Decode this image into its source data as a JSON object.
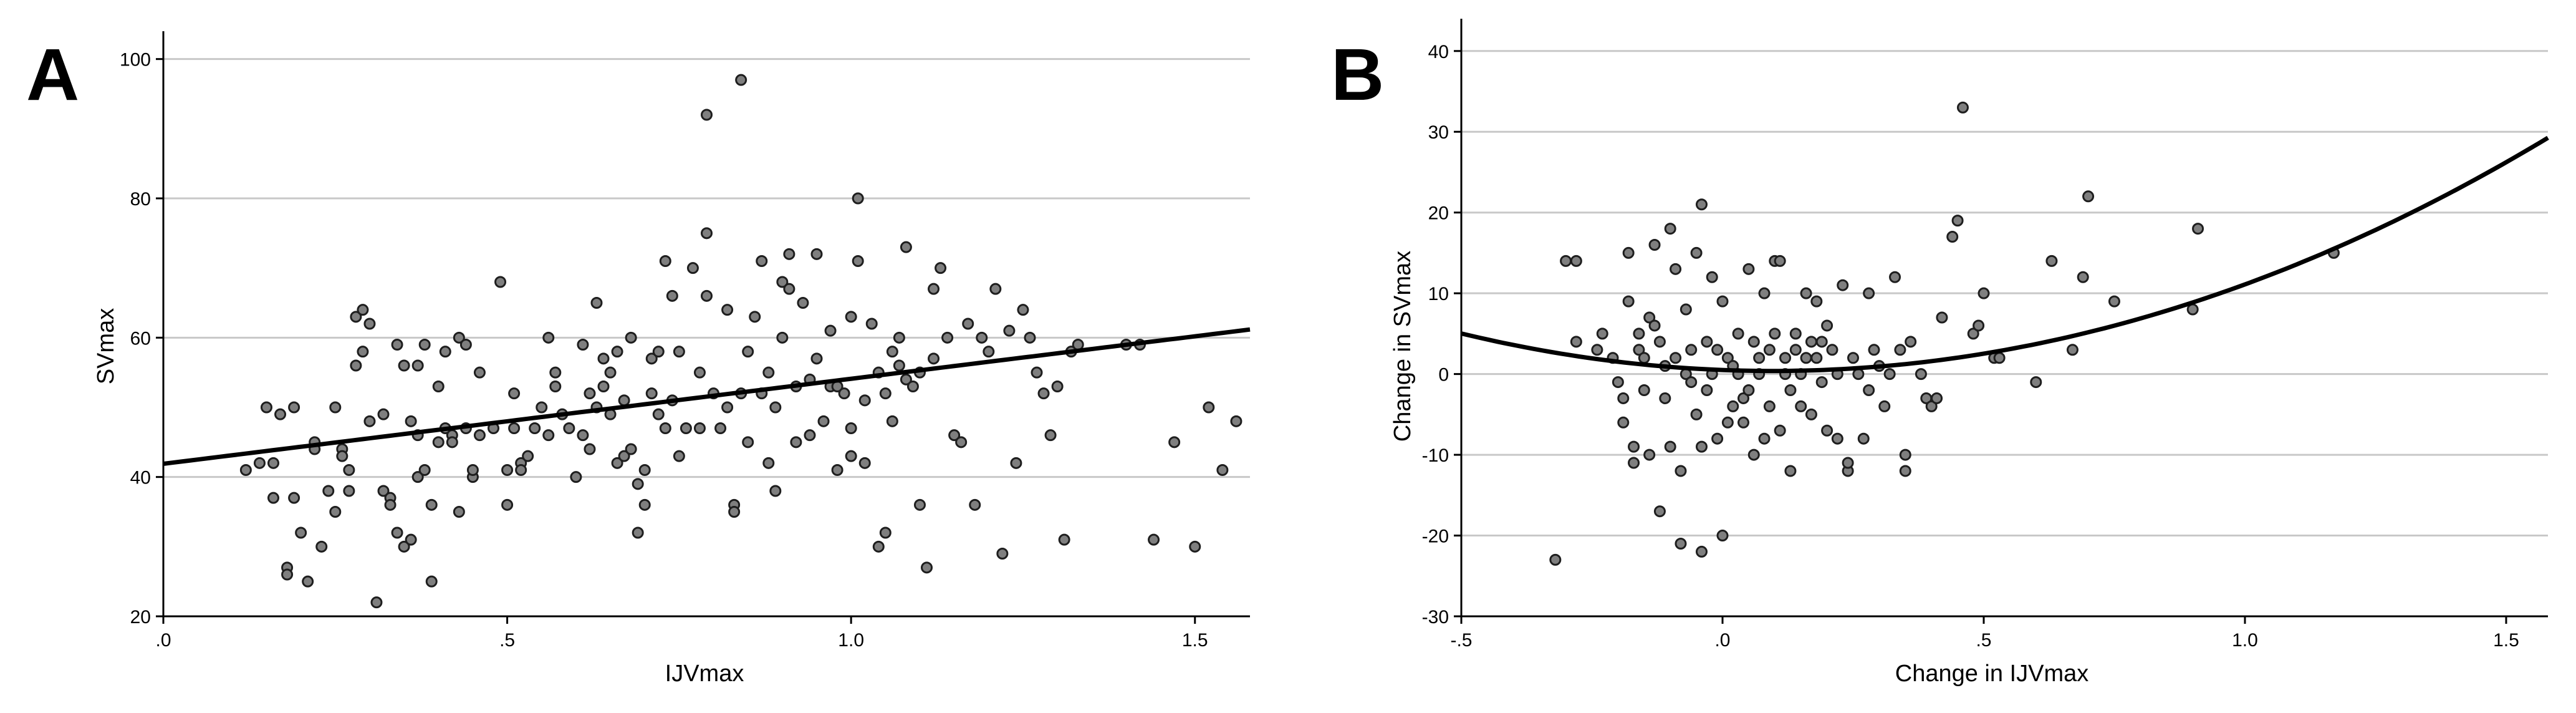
{
  "chart_data": [
    {
      "panel_label": "A",
      "type": "scatter",
      "xlabel": "IJVmax",
      "ylabel": "SVmax",
      "xlim": [
        0.0,
        1.58
      ],
      "ylim": [
        20,
        104
      ],
      "xticks": [
        0.0,
        0.5,
        1.0,
        1.5
      ],
      "xtick_labels": [
        ".0",
        ".5",
        "1.0",
        "1.5"
      ],
      "yticks": [
        20,
        40,
        60,
        80,
        100
      ],
      "ytick_labels": [
        "20",
        "40",
        "60",
        "80",
        "100"
      ],
      "grid": "horizontal",
      "colors": {
        "point_fill": "#7f7f7f",
        "point_edge": "#1e1e1e",
        "fit_line": "#000000"
      },
      "fit": {
        "type": "linear",
        "intercept": 41.9,
        "slope": 12.2
      },
      "points": [
        [
          0.12,
          41
        ],
        [
          0.14,
          42
        ],
        [
          0.15,
          50
        ],
        [
          0.16,
          37
        ],
        [
          0.16,
          42
        ],
        [
          0.17,
          49
        ],
        [
          0.18,
          27
        ],
        [
          0.18,
          26
        ],
        [
          0.19,
          37
        ],
        [
          0.19,
          50
        ],
        [
          0.2,
          32
        ],
        [
          0.21,
          25
        ],
        [
          0.22,
          45
        ],
        [
          0.22,
          44
        ],
        [
          0.23,
          30
        ],
        [
          0.24,
          38
        ],
        [
          0.25,
          50
        ],
        [
          0.25,
          35
        ],
        [
          0.26,
          44
        ],
        [
          0.26,
          43
        ],
        [
          0.27,
          38
        ],
        [
          0.27,
          41
        ],
        [
          0.28,
          56
        ],
        [
          0.28,
          63
        ],
        [
          0.29,
          58
        ],
        [
          0.29,
          64
        ],
        [
          0.3,
          48
        ],
        [
          0.3,
          62
        ],
        [
          0.31,
          22
        ],
        [
          0.32,
          49
        ],
        [
          0.32,
          38
        ],
        [
          0.33,
          37
        ],
        [
          0.33,
          36
        ],
        [
          0.34,
          59
        ],
        [
          0.34,
          32
        ],
        [
          0.35,
          30
        ],
        [
          0.35,
          56
        ],
        [
          0.36,
          31
        ],
        [
          0.36,
          48
        ],
        [
          0.37,
          56
        ],
        [
          0.37,
          46
        ],
        [
          0.37,
          40
        ],
        [
          0.38,
          41
        ],
        [
          0.38,
          59
        ],
        [
          0.39,
          36
        ],
        [
          0.39,
          25
        ],
        [
          0.4,
          53
        ],
        [
          0.4,
          45
        ],
        [
          0.41,
          47
        ],
        [
          0.41,
          58
        ],
        [
          0.42,
          46
        ],
        [
          0.42,
          45
        ],
        [
          0.43,
          35
        ],
        [
          0.43,
          60
        ],
        [
          0.44,
          59
        ],
        [
          0.44,
          47
        ],
        [
          0.45,
          40
        ],
        [
          0.45,
          41
        ],
        [
          0.46,
          55
        ],
        [
          0.46,
          46
        ],
        [
          0.48,
          47
        ],
        [
          0.49,
          68
        ],
        [
          0.5,
          41
        ],
        [
          0.5,
          36
        ],
        [
          0.51,
          47
        ],
        [
          0.51,
          52
        ],
        [
          0.52,
          42
        ],
        [
          0.52,
          41
        ],
        [
          0.53,
          43
        ],
        [
          0.54,
          47
        ],
        [
          0.55,
          50
        ],
        [
          0.56,
          60
        ],
        [
          0.56,
          46
        ],
        [
          0.57,
          55
        ],
        [
          0.57,
          53
        ],
        [
          0.58,
          49
        ],
        [
          0.59,
          47
        ],
        [
          0.6,
          40
        ],
        [
          0.61,
          59
        ],
        [
          0.61,
          46
        ],
        [
          0.62,
          44
        ],
        [
          0.62,
          52
        ],
        [
          0.63,
          65
        ],
        [
          0.63,
          50
        ],
        [
          0.64,
          53
        ],
        [
          0.64,
          57
        ],
        [
          0.65,
          49
        ],
        [
          0.65,
          55
        ],
        [
          0.66,
          58
        ],
        [
          0.66,
          42
        ],
        [
          0.67,
          43
        ],
        [
          0.67,
          51
        ],
        [
          0.68,
          60
        ],
        [
          0.68,
          44
        ],
        [
          0.69,
          32
        ],
        [
          0.69,
          39
        ],
        [
          0.7,
          41
        ],
        [
          0.7,
          36
        ],
        [
          0.71,
          57
        ],
        [
          0.71,
          52
        ],
        [
          0.72,
          49
        ],
        [
          0.72,
          58
        ],
        [
          0.73,
          47
        ],
        [
          0.73,
          71
        ],
        [
          0.74,
          51
        ],
        [
          0.74,
          66
        ],
        [
          0.75,
          58
        ],
        [
          0.75,
          43
        ],
        [
          0.76,
          47
        ],
        [
          0.77,
          70
        ],
        [
          0.78,
          55
        ],
        [
          0.78,
          47
        ],
        [
          0.79,
          66
        ],
        [
          0.79,
          75
        ],
        [
          0.79,
          92
        ],
        [
          0.8,
          52
        ],
        [
          0.81,
          47
        ],
        [
          0.82,
          64
        ],
        [
          0.82,
          50
        ],
        [
          0.83,
          36
        ],
        [
          0.83,
          35
        ],
        [
          0.84,
          97
        ],
        [
          0.84,
          52
        ],
        [
          0.85,
          58
        ],
        [
          0.85,
          45
        ],
        [
          0.86,
          63
        ],
        [
          0.87,
          71
        ],
        [
          0.87,
          52
        ],
        [
          0.88,
          42
        ],
        [
          0.88,
          55
        ],
        [
          0.89,
          50
        ],
        [
          0.89,
          38
        ],
        [
          0.9,
          68
        ],
        [
          0.9,
          60
        ],
        [
          0.91,
          67
        ],
        [
          0.91,
          72
        ],
        [
          0.92,
          53
        ],
        [
          0.92,
          45
        ],
        [
          0.93,
          65
        ],
        [
          0.94,
          54
        ],
        [
          0.94,
          46
        ],
        [
          0.95,
          72
        ],
        [
          0.95,
          57
        ],
        [
          0.96,
          48
        ],
        [
          0.97,
          53
        ],
        [
          0.97,
          61
        ],
        [
          0.98,
          53
        ],
        [
          0.98,
          41
        ],
        [
          0.99,
          52
        ],
        [
          1.0,
          47
        ],
        [
          1.0,
          43
        ],
        [
          1.0,
          63
        ],
        [
          1.01,
          71
        ],
        [
          1.01,
          80
        ],
        [
          1.02,
          51
        ],
        [
          1.02,
          42
        ],
        [
          1.03,
          62
        ],
        [
          1.04,
          55
        ],
        [
          1.04,
          30
        ],
        [
          1.05,
          32
        ],
        [
          1.05,
          52
        ],
        [
          1.06,
          58
        ],
        [
          1.06,
          48
        ],
        [
          1.07,
          56
        ],
        [
          1.07,
          60
        ],
        [
          1.08,
          73
        ],
        [
          1.08,
          54
        ],
        [
          1.09,
          53
        ],
        [
          1.1,
          55
        ],
        [
          1.1,
          36
        ],
        [
          1.11,
          27
        ],
        [
          1.12,
          57
        ],
        [
          1.12,
          67
        ],
        [
          1.13,
          70
        ],
        [
          1.14,
          60
        ],
        [
          1.15,
          46
        ],
        [
          1.16,
          45
        ],
        [
          1.17,
          62
        ],
        [
          1.18,
          36
        ],
        [
          1.19,
          60
        ],
        [
          1.2,
          58
        ],
        [
          1.21,
          67
        ],
        [
          1.22,
          29
        ],
        [
          1.23,
          61
        ],
        [
          1.24,
          42
        ],
        [
          1.25,
          64
        ],
        [
          1.26,
          60
        ],
        [
          1.27,
          55
        ],
        [
          1.28,
          52
        ],
        [
          1.29,
          46
        ],
        [
          1.3,
          53
        ],
        [
          1.31,
          31
        ],
        [
          1.32,
          58
        ],
        [
          1.33,
          59
        ],
        [
          1.4,
          59
        ],
        [
          1.44,
          31
        ],
        [
          1.47,
          45
        ],
        [
          1.5,
          30
        ],
        [
          1.52,
          50
        ],
        [
          1.54,
          41
        ],
        [
          1.56,
          48
        ],
        [
          1.42,
          59
        ]
      ]
    },
    {
      "panel_label": "B",
      "type": "scatter",
      "xlabel": "Change in IJVmax",
      "ylabel": "Change in SVmax",
      "xlim": [
        -0.5,
        1.58
      ],
      "ylim": [
        -30,
        44
      ],
      "xticks": [
        -0.5,
        0.0,
        0.5,
        1.0,
        1.5
      ],
      "xtick_labels": [
        "-.5",
        ".0",
        ".5",
        "1.0",
        "1.5"
      ],
      "yticks": [
        -30,
        -20,
        -10,
        0,
        10,
        20,
        30,
        40
      ],
      "ytick_labels": [
        "-30",
        "-20",
        "-10",
        "0",
        "10",
        "20",
        "30",
        "40"
      ],
      "grid": "horizontal",
      "colors": {
        "point_fill": "#7f7f7f",
        "point_edge": "#1e1e1e",
        "fit_line": "#000000"
      },
      "fit": {
        "type": "quadratic",
        "a": 13.1,
        "b": -2.5,
        "c": 0.5
      },
      "points": [
        [
          -0.32,
          -23
        ],
        [
          -0.3,
          14
        ],
        [
          -0.28,
          14
        ],
        [
          -0.28,
          4
        ],
        [
          -0.24,
          3
        ],
        [
          -0.23,
          5
        ],
        [
          -0.21,
          2
        ],
        [
          -0.2,
          -1
        ],
        [
          -0.19,
          -6
        ],
        [
          -0.19,
          -3
        ],
        [
          -0.18,
          15
        ],
        [
          -0.18,
          9
        ],
        [
          -0.17,
          -11
        ],
        [
          -0.17,
          -9
        ],
        [
          -0.16,
          5
        ],
        [
          -0.16,
          3
        ],
        [
          -0.15,
          -2
        ],
        [
          -0.15,
          2
        ],
        [
          -0.14,
          -10
        ],
        [
          -0.14,
          7
        ],
        [
          -0.13,
          16
        ],
        [
          -0.13,
          6
        ],
        [
          -0.12,
          -17
        ],
        [
          -0.12,
          4
        ],
        [
          -0.11,
          -3
        ],
        [
          -0.11,
          1
        ],
        [
          -0.1,
          -9
        ],
        [
          -0.1,
          18
        ],
        [
          -0.09,
          13
        ],
        [
          -0.09,
          2
        ],
        [
          -0.08,
          -12
        ],
        [
          -0.08,
          -21
        ],
        [
          -0.07,
          0
        ],
        [
          -0.07,
          8
        ],
        [
          -0.06,
          -1
        ],
        [
          -0.06,
          3
        ],
        [
          -0.05,
          15
        ],
        [
          -0.05,
          -5
        ],
        [
          -0.04,
          -22
        ],
        [
          -0.04,
          -9
        ],
        [
          -0.04,
          21
        ],
        [
          -0.03,
          4
        ],
        [
          -0.03,
          -2
        ],
        [
          -0.02,
          0
        ],
        [
          -0.02,
          12
        ],
        [
          -0.01,
          3
        ],
        [
          -0.01,
          -8
        ],
        [
          0.0,
          -20
        ],
        [
          0.0,
          9
        ],
        [
          0.01,
          2
        ],
        [
          0.01,
          -6
        ],
        [
          0.02,
          -4
        ],
        [
          0.02,
          1
        ],
        [
          0.03,
          0
        ],
        [
          0.03,
          5
        ],
        [
          0.04,
          -3
        ],
        [
          0.04,
          -6
        ],
        [
          0.05,
          13
        ],
        [
          0.05,
          -2
        ],
        [
          0.06,
          -10
        ],
        [
          0.06,
          4
        ],
        [
          0.07,
          2
        ],
        [
          0.07,
          0
        ],
        [
          0.08,
          -8
        ],
        [
          0.08,
          10
        ],
        [
          0.09,
          -4
        ],
        [
          0.09,
          3
        ],
        [
          0.1,
          14
        ],
        [
          0.1,
          5
        ],
        [
          0.11,
          -7
        ],
        [
          0.11,
          14
        ],
        [
          0.12,
          0
        ],
        [
          0.12,
          2
        ],
        [
          0.13,
          -12
        ],
        [
          0.13,
          -2
        ],
        [
          0.14,
          5
        ],
        [
          0.14,
          3
        ],
        [
          0.15,
          -4
        ],
        [
          0.15,
          0
        ],
        [
          0.16,
          2
        ],
        [
          0.16,
          10
        ],
        [
          0.17,
          -5
        ],
        [
          0.17,
          4
        ],
        [
          0.18,
          9
        ],
        [
          0.18,
          2
        ],
        [
          0.19,
          -1
        ],
        [
          0.19,
          4
        ],
        [
          0.2,
          6
        ],
        [
          0.2,
          -7
        ],
        [
          0.21,
          3
        ],
        [
          0.22,
          -8
        ],
        [
          0.22,
          0
        ],
        [
          0.23,
          11
        ],
        [
          0.24,
          -12
        ],
        [
          0.24,
          -11
        ],
        [
          0.25,
          2
        ],
        [
          0.26,
          0
        ],
        [
          0.27,
          -8
        ],
        [
          0.28,
          10
        ],
        [
          0.28,
          -2
        ],
        [
          0.29,
          3
        ],
        [
          0.3,
          1
        ],
        [
          0.31,
          -4
        ],
        [
          0.32,
          0
        ],
        [
          0.33,
          12
        ],
        [
          0.34,
          3
        ],
        [
          0.35,
          -10
        ],
        [
          0.35,
          -12
        ],
        [
          0.36,
          4
        ],
        [
          0.38,
          0
        ],
        [
          0.39,
          -3
        ],
        [
          0.4,
          -4
        ],
        [
          0.41,
          -3
        ],
        [
          0.42,
          7
        ],
        [
          0.44,
          17
        ],
        [
          0.45,
          19
        ],
        [
          0.46,
          33
        ],
        [
          0.48,
          5
        ],
        [
          0.49,
          6
        ],
        [
          0.5,
          10
        ],
        [
          0.52,
          2
        ],
        [
          0.53,
          2
        ],
        [
          0.6,
          -1
        ],
        [
          0.63,
          14
        ],
        [
          0.67,
          3
        ],
        [
          0.69,
          12
        ],
        [
          0.7,
          22
        ],
        [
          0.75,
          9
        ],
        [
          0.9,
          8
        ],
        [
          0.91,
          18
        ],
        [
          1.17,
          15
        ]
      ]
    }
  ]
}
